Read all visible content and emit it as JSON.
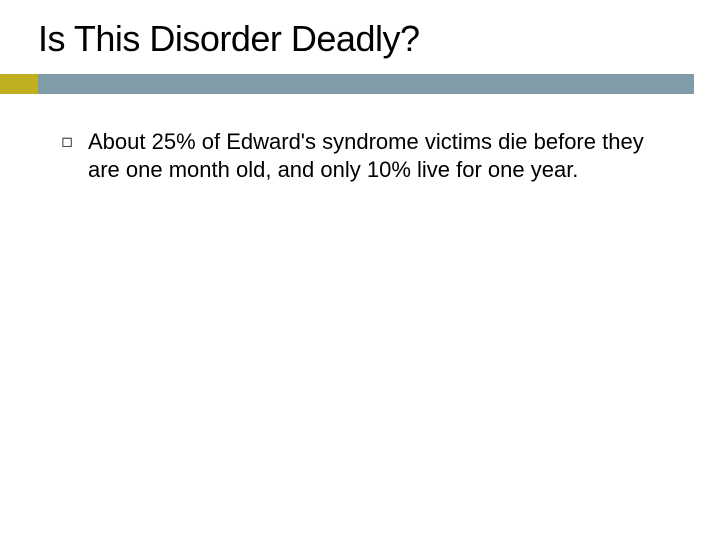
{
  "slide": {
    "title": "Is This Disorder Deadly?",
    "bullets": [
      {
        "text": "About 25% of Edward's syndrome victims die before they are one month old, and only 10% live for one year."
      }
    ]
  },
  "style": {
    "type": "infographic",
    "background_color": "#ffffff",
    "title_color": "#000000",
    "title_fontsize": 36,
    "body_color": "#000000",
    "body_fontsize": 22,
    "accent_block_color": "#c0b020",
    "hr_bar_color": "#7f9ca8",
    "hr_height": 20,
    "bullet_glyph": "◻",
    "bullet_glyph_color": "#000000"
  }
}
